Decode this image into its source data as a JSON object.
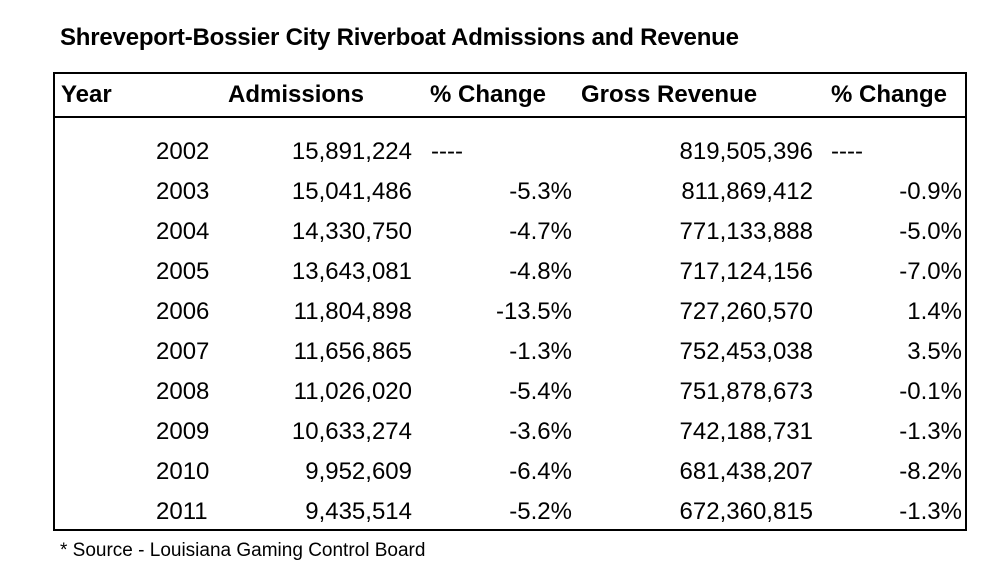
{
  "title": "Shreveport-Bossier City Riverboat Admissions and Revenue",
  "headers": {
    "year": "Year",
    "admissions": "Admissions",
    "admissions_change": "% Change",
    "gross_revenue": "Gross Revenue",
    "revenue_change": "% Change"
  },
  "rows": [
    {
      "year": "2002",
      "admissions": "15,891,224",
      "admissions_change": "----",
      "gross_revenue": "819,505,396",
      "revenue_change": "----"
    },
    {
      "year": "2003",
      "admissions": "15,041,486",
      "admissions_change": "-5.3%",
      "gross_revenue": "811,869,412",
      "revenue_change": "-0.9%"
    },
    {
      "year": "2004",
      "admissions": "14,330,750",
      "admissions_change": "-4.7%",
      "gross_revenue": "771,133,888",
      "revenue_change": "-5.0%"
    },
    {
      "year": "2005",
      "admissions": "13,643,081",
      "admissions_change": "-4.8%",
      "gross_revenue": "717,124,156",
      "revenue_change": "-7.0%"
    },
    {
      "year": "2006",
      "admissions": "11,804,898",
      "admissions_change": "-13.5%",
      "gross_revenue": "727,260,570",
      "revenue_change": "1.4%"
    },
    {
      "year": "2007",
      "admissions": "11,656,865",
      "admissions_change": "-1.3%",
      "gross_revenue": "752,453,038",
      "revenue_change": "3.5%"
    },
    {
      "year": "2008",
      "admissions": "11,026,020",
      "admissions_change": "-5.4%",
      "gross_revenue": "751,878,673",
      "revenue_change": "-0.1%"
    },
    {
      "year": "2009",
      "admissions": "10,633,274",
      "admissions_change": "-3.6%",
      "gross_revenue": "742,188,731",
      "revenue_change": "-1.3%"
    },
    {
      "year": "2010",
      "admissions": "9,952,609",
      "admissions_change": "-6.4%",
      "gross_revenue": "681,438,207",
      "revenue_change": "-8.2%"
    },
    {
      "year": "2011",
      "admissions": "9,435,514",
      "admissions_change": "-5.2%",
      "gross_revenue": "672,360,815",
      "revenue_change": "-1.3%"
    }
  ],
  "footnote": "* Source - Louisiana Gaming Control Board"
}
